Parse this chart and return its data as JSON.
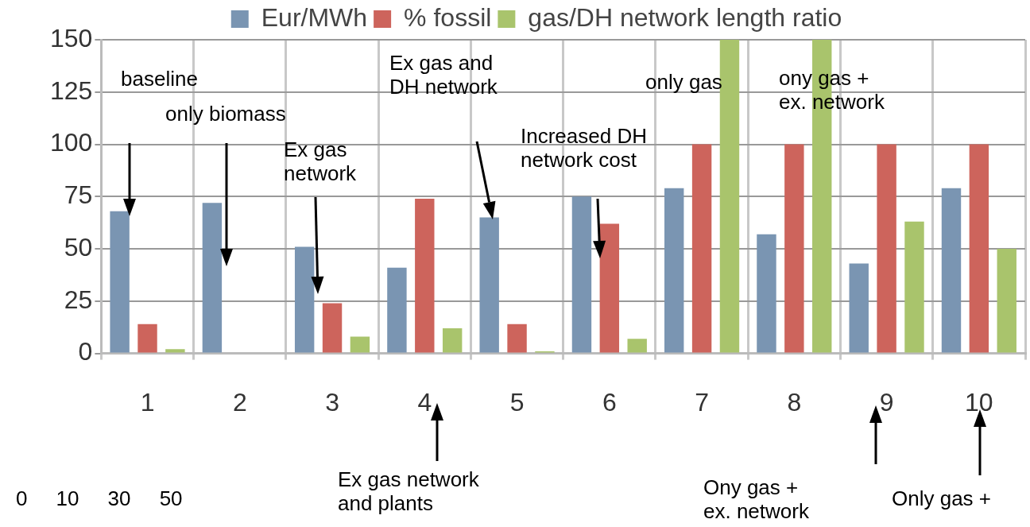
{
  "chart_data": {
    "type": "bar",
    "categories": [
      "1",
      "2",
      "3",
      "4",
      "5",
      "6",
      "7",
      "8",
      "9",
      "10"
    ],
    "series": [
      {
        "name": "Eur/MWh",
        "color": "#7a95b2",
        "values": [
          68,
          72,
          51,
          41,
          65,
          75,
          79,
          57,
          43,
          79
        ]
      },
      {
        "name": "% fossil",
        "color": "#cd645c",
        "values": [
          14,
          0,
          24,
          74,
          14,
          62,
          100,
          100,
          100,
          100
        ]
      },
      {
        "name": "gas/DH network length ratio",
        "color": "#a9c46c",
        "values": [
          2,
          0,
          8,
          12,
          1,
          7,
          150,
          150,
          63,
          50
        ]
      }
    ],
    "ylim": [
      0,
      150
    ],
    "yticks": [
      0,
      25,
      50,
      75,
      100,
      125,
      150
    ],
    "grid": true,
    "legend": "top",
    "annotations": [
      "baseline",
      "only biomass",
      "Ex gas\nnetwork",
      "Ex gas and\nDH network",
      "Increased DH\nnetwork cost",
      "only gas",
      "ony gas +\nex. network",
      "Ex gas network\nand plants",
      "Ony gas +\nex. network",
      "Only gas +",
      "0     10     30     50"
    ]
  }
}
